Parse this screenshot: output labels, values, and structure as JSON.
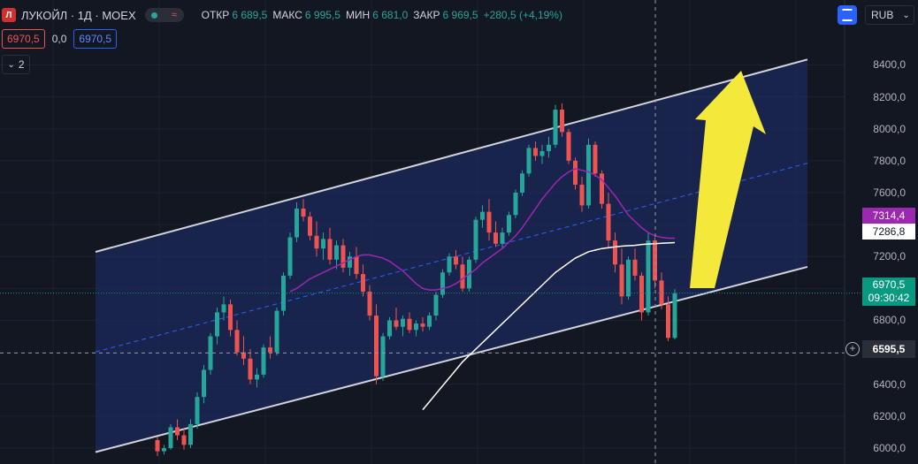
{
  "header": {
    "symbol": "ЛУКОЙЛ · 1Д · MOEX",
    "open_label": "ОТКР",
    "open_value": "6 689,5",
    "high_label": "МАКС",
    "high_value": "6 995,5",
    "low_label": "МИН",
    "low_value": "6 681,0",
    "close_label": "ЗАКР",
    "close_value": "6 969,5",
    "change": "+280,5 (+4,19%)"
  },
  "row2": {
    "sell_price": "6970,5",
    "spread": "0,0",
    "buy_price": "6970,5"
  },
  "indicators_toggle": {
    "count": "2"
  },
  "currency": "RUB",
  "price_axis": {
    "ticks": [
      "8400,0",
      "8200,0",
      "8000,0",
      "7800,0",
      "7600,0",
      "7400,0",
      "7200,0",
      "7000,0",
      "6800,0",
      "6600,0",
      "6400,0",
      "6200,0",
      "6000,0"
    ],
    "ma_label": "7314,4",
    "ma2_label": "7286,8",
    "last_price": "6970,5",
    "countdown": "09:30:42",
    "crosshair_price": "6595,5"
  },
  "colors": {
    "background": "#131722",
    "up": "#26a69a",
    "down": "#ef5350",
    "ma_purple": "#9c27b0",
    "ma_white": "#ffffff",
    "channel": "#d1d4dc",
    "channel_fill": "#1c2a5c",
    "midline": "#2962ff",
    "arrow": "#f4e83a"
  },
  "chart_data": {
    "type": "candlestick",
    "ylim": [
      5950,
      8530
    ],
    "ohlc": [
      [
        6050,
        6070,
        5950,
        5980
      ],
      [
        5980,
        6020,
        5960,
        6000
      ],
      [
        6000,
        6150,
        5990,
        6130
      ],
      [
        6130,
        6180,
        6050,
        6080
      ],
      [
        6080,
        6120,
        5990,
        6020
      ],
      [
        6020,
        6180,
        6000,
        6150
      ],
      [
        6150,
        6350,
        6120,
        6320
      ],
      [
        6320,
        6520,
        6280,
        6490
      ],
      [
        6490,
        6720,
        6460,
        6700
      ],
      [
        6700,
        6880,
        6650,
        6850
      ],
      [
        6850,
        6950,
        6800,
        6900
      ],
      [
        6900,
        6930,
        6700,
        6740
      ],
      [
        6740,
        6800,
        6580,
        6600
      ],
      [
        6600,
        6700,
        6520,
        6560
      ],
      [
        6560,
        6620,
        6400,
        6430
      ],
      [
        6430,
        6500,
        6380,
        6460
      ],
      [
        6460,
        6650,
        6440,
        6630
      ],
      [
        6630,
        6700,
        6560,
        6600
      ],
      [
        6600,
        6880,
        6580,
        6860
      ],
      [
        6860,
        7100,
        6830,
        7080
      ],
      [
        7080,
        7350,
        7060,
        7320
      ],
      [
        7320,
        7540,
        7290,
        7500
      ],
      [
        7500,
        7560,
        7420,
        7450
      ],
      [
        7450,
        7480,
        7300,
        7330
      ],
      [
        7330,
        7420,
        7200,
        7250
      ],
      [
        7250,
        7350,
        7180,
        7310
      ],
      [
        7310,
        7380,
        7150,
        7180
      ],
      [
        7180,
        7300,
        7120,
        7270
      ],
      [
        7270,
        7310,
        7100,
        7130
      ],
      [
        7130,
        7230,
        7080,
        7200
      ],
      [
        7200,
        7260,
        7060,
        7090
      ],
      [
        7090,
        7150,
        6950,
        6980
      ],
      [
        6980,
        7020,
        6800,
        6830
      ],
      [
        6830,
        6900,
        6400,
        6450
      ],
      [
        6450,
        6720,
        6420,
        6700
      ],
      [
        6700,
        6820,
        6680,
        6800
      ],
      [
        6800,
        6880,
        6740,
        6760
      ],
      [
        6760,
        6830,
        6700,
        6810
      ],
      [
        6810,
        6850,
        6720,
        6740
      ],
      [
        6740,
        6800,
        6700,
        6780
      ],
      [
        6780,
        6820,
        6730,
        6760
      ],
      [
        6760,
        6850,
        6740,
        6830
      ],
      [
        6830,
        6980,
        6800,
        6960
      ],
      [
        6960,
        7120,
        6940,
        7100
      ],
      [
        7100,
        7220,
        7080,
        7200
      ],
      [
        7200,
        7240,
        7120,
        7150
      ],
      [
        7150,
        7200,
        6980,
        7000
      ],
      [
        7000,
        7200,
        6980,
        7180
      ],
      [
        7180,
        7450,
        7160,
        7430
      ],
      [
        7430,
        7520,
        7380,
        7480
      ],
      [
        7480,
        7560,
        7300,
        7350
      ],
      [
        7350,
        7420,
        7260,
        7280
      ],
      [
        7280,
        7380,
        7250,
        7350
      ],
      [
        7350,
        7480,
        7330,
        7460
      ],
      [
        7460,
        7620,
        7440,
        7600
      ],
      [
        7600,
        7740,
        7580,
        7720
      ],
      [
        7720,
        7900,
        7700,
        7880
      ],
      [
        7880,
        7920,
        7800,
        7830
      ],
      [
        7830,
        7900,
        7780,
        7860
      ],
      [
        7860,
        7950,
        7820,
        7900
      ],
      [
        7900,
        8150,
        7880,
        8120
      ],
      [
        8120,
        8160,
        7950,
        7980
      ],
      [
        7980,
        8000,
        7780,
        7800
      ],
      [
        7800,
        7820,
        7620,
        7650
      ],
      [
        7650,
        7700,
        7480,
        7520
      ],
      [
        7520,
        7940,
        7500,
        7900
      ],
      [
        7900,
        7920,
        7700,
        7720
      ],
      [
        7720,
        7740,
        7500,
        7530
      ],
      [
        7530,
        7600,
        7250,
        7300
      ],
      [
        7300,
        7350,
        7100,
        7150
      ],
      [
        7150,
        7250,
        6900,
        6950
      ],
      [
        6950,
        7200,
        6930,
        7180
      ],
      [
        7180,
        7250,
        7050,
        7080
      ],
      [
        7080,
        7100,
        6800,
        6850
      ],
      [
        6850,
        7350,
        6830,
        7300
      ],
      [
        7300,
        7320,
        7000,
        7050
      ],
      [
        7050,
        7100,
        6870,
        6900
      ],
      [
        6900,
        6950,
        6670,
        6690
      ],
      [
        6690,
        6995,
        6681,
        6970
      ]
    ],
    "ma_purple": [
      null,
      null,
      null,
      null,
      null,
      null,
      null,
      null,
      null,
      null,
      null,
      null,
      null,
      null,
      null,
      null,
      null,
      null,
      null,
      null,
      6980,
      7000,
      7030,
      7060,
      7080,
      7100,
      7120,
      7140,
      7160,
      7180,
      7200,
      7210,
      7210,
      7200,
      7190,
      7170,
      7140,
      7110,
      7070,
      7030,
      7000,
      6990,
      6990,
      7000,
      7010,
      7030,
      7060,
      7090,
      7120,
      7160,
      7190,
      7220,
      7250,
      7290,
      7330,
      7380,
      7440,
      7500,
      7560,
      7610,
      7660,
      7700,
      7730,
      7750,
      7740,
      7730,
      7710,
      7680,
      7630,
      7580,
      7520,
      7460,
      7420,
      7380,
      7350,
      7330,
      7320,
      7315,
      7314.4
    ],
    "ma_white": [
      null,
      null,
      null,
      null,
      null,
      null,
      null,
      null,
      null,
      null,
      null,
      null,
      null,
      null,
      null,
      null,
      null,
      null,
      null,
      null,
      null,
      null,
      null,
      null,
      null,
      null,
      null,
      null,
      null,
      null,
      null,
      null,
      null,
      null,
      null,
      null,
      null,
      null,
      null,
      null,
      6240,
      6290,
      6340,
      6390,
      6440,
      6490,
      6540,
      6580,
      6620,
      6660,
      6700,
      6740,
      6780,
      6820,
      6860,
      6900,
      6940,
      6980,
      7020,
      7060,
      7100,
      7130,
      7160,
      7190,
      7210,
      7230,
      7240,
      7250,
      7255,
      7260,
      7265,
      7268,
      7270,
      7275,
      7278,
      7280,
      7283,
      7285,
      7286.8
    ],
    "channel": {
      "upper": [
        7229,
        8434
      ],
      "lower": [
        5975,
        7135
      ]
    },
    "last_price": 6970.5,
    "crosshair": 6595.5
  }
}
